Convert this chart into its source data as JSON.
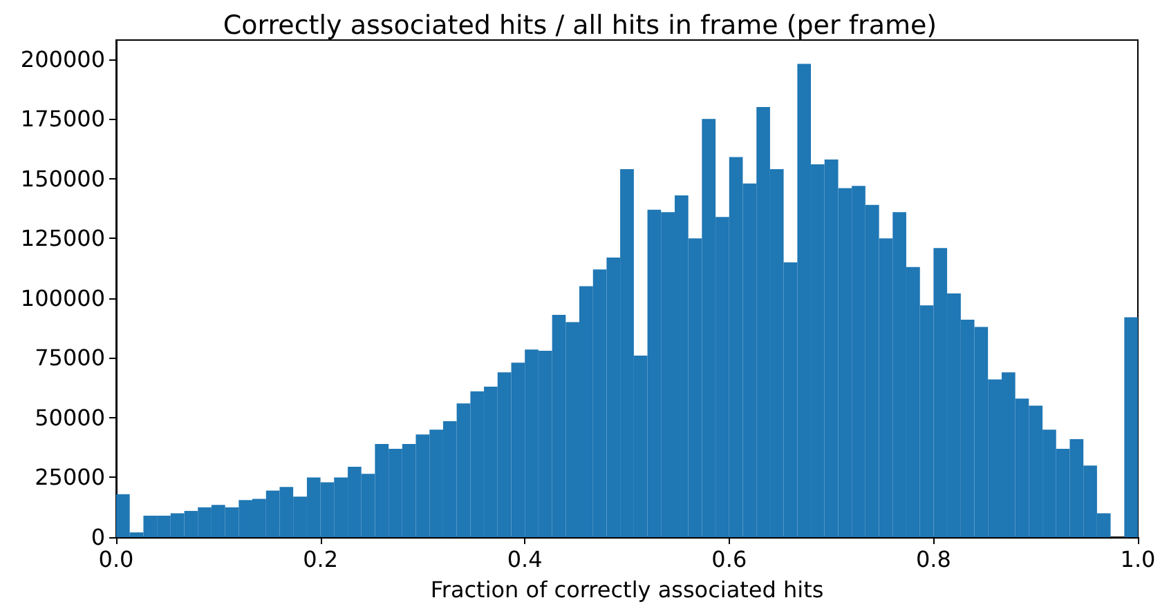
{
  "chart_data": {
    "type": "histogram",
    "title": "Correctly associated hits / all hits in frame (per frame)",
    "xlabel": "Fraction of correctly associated hits",
    "color": "#1f77b4",
    "bins": [
      0,
      0.0133,
      0.0267,
      0.04,
      0.0533,
      0.0667,
      0.08,
      0.0933,
      0.1067,
      0.12,
      0.1333,
      0.1467,
      0.16,
      0.1733,
      0.1867,
      0.2,
      0.2133,
      0.2267,
      0.24,
      0.2533,
      0.2667,
      0.28,
      0.2933,
      0.3067,
      0.32,
      0.3333,
      0.3467,
      0.36,
      0.3733,
      0.3867,
      0.4,
      0.4133,
      0.4267,
      0.44,
      0.4533,
      0.4667,
      0.48,
      0.4933,
      0.5067,
      0.52,
      0.5333,
      0.5467,
      0.56,
      0.5733,
      0.5867,
      0.6,
      0.6133,
      0.6267,
      0.64,
      0.6533,
      0.6667,
      0.68,
      0.6933,
      0.7067,
      0.72,
      0.7333,
      0.7467,
      0.76,
      0.7733,
      0.7867,
      0.8,
      0.8133,
      0.8267,
      0.84,
      0.8533,
      0.8667,
      0.88,
      0.8933,
      0.9067,
      0.92,
      0.9333,
      0.9467,
      0.96,
      0.9733,
      0.9867,
      1
    ],
    "values": [
      18000,
      2000,
      9000,
      9000,
      10000,
      11000,
      12500,
      13500,
      12500,
      15500,
      16000,
      19500,
      21000,
      17000,
      25000,
      23000,
      25000,
      29500,
      26500,
      39000,
      37000,
      39000,
      43000,
      45000,
      48500,
      56000,
      61000,
      63000,
      69000,
      73000,
      78500,
      78000,
      93000,
      90000,
      105000,
      112000,
      117000,
      154000,
      76000,
      137000,
      136000,
      143000,
      125000,
      175000,
      134000,
      159000,
      148000,
      180000,
      154000,
      115000,
      198000,
      156000,
      158000,
      146000,
      147000,
      139000,
      125000,
      136000,
      113000,
      97000,
      121000,
      102000,
      91000,
      88000,
      66000,
      69000,
      58000,
      55000,
      45000,
      37000,
      41000,
      30000,
      10000,
      0,
      92000
    ],
    "xlim": [
      0,
      1
    ],
    "xticks": [
      {
        "value": 0,
        "label": "0.0"
      },
      {
        "value": 0.2,
        "label": "0.2"
      },
      {
        "value": 0.4,
        "label": "0.4"
      },
      {
        "value": 0.6,
        "label": "0.6"
      },
      {
        "value": 0.8,
        "label": "0.8"
      },
      {
        "value": 1,
        "label": "1.0"
      }
    ],
    "ylim": [
      0,
      208000
    ],
    "yticks": [
      0,
      25000,
      50000,
      75000,
      100000,
      125000,
      150000,
      175000,
      200000
    ],
    "grid": false
  }
}
